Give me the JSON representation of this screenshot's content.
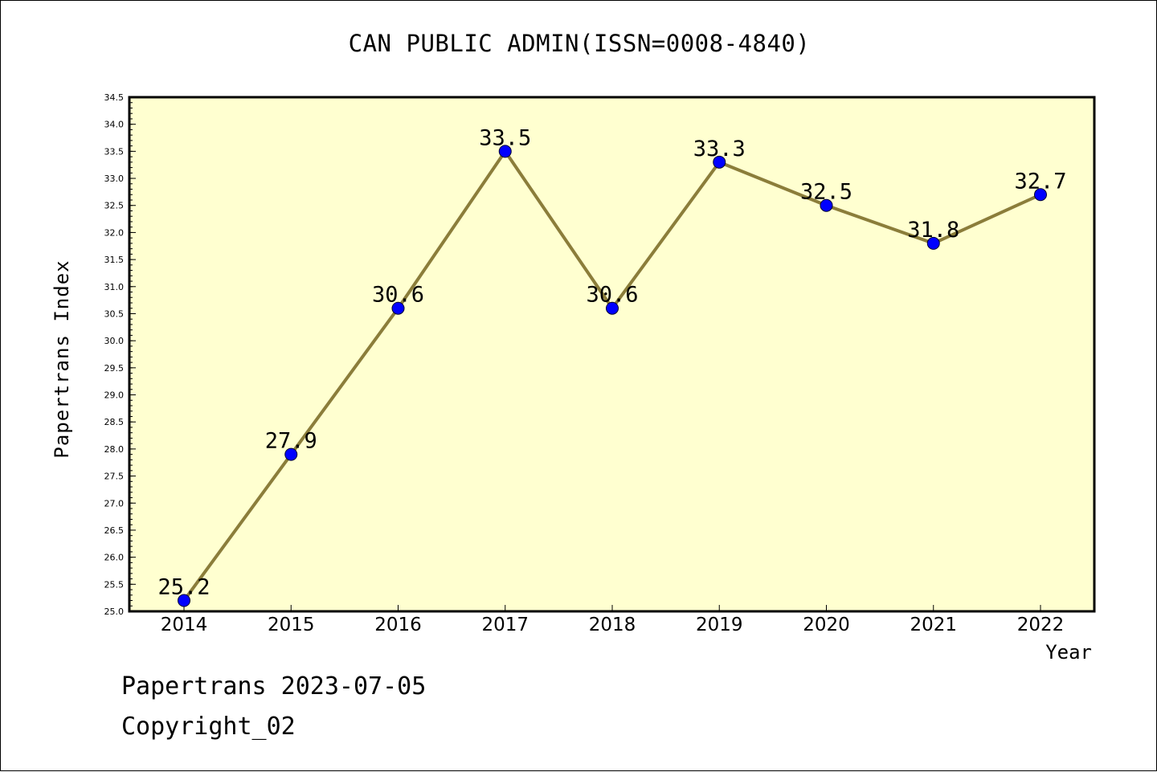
{
  "chart_data": {
    "type": "line",
    "title": "CAN PUBLIC ADMIN(ISSN=0008-4840)",
    "xlabel": "Year",
    "ylabel": "Papertrans Index",
    "x": [
      "2014",
      "2015",
      "2016",
      "2017",
      "2018",
      "2019",
      "2020",
      "2021",
      "2022"
    ],
    "values": [
      25.2,
      27.9,
      30.6,
      33.5,
      30.6,
      33.3,
      32.5,
      31.8,
      32.7
    ],
    "data_labels": [
      "25.2",
      "27.9",
      "30.6",
      "33.5",
      "30.6",
      "33.3",
      "32.5",
      "31.8",
      "32.7"
    ],
    "ylim": [
      25.0,
      34.5
    ],
    "yticks": [
      "25.0",
      "25.5",
      "26.0",
      "26.5",
      "27.0",
      "27.5",
      "28.0",
      "28.5",
      "29.0",
      "29.5",
      "30.0",
      "30.5",
      "31.0",
      "31.5",
      "32.0",
      "32.5",
      "33.0",
      "33.5",
      "34.0",
      "34.5"
    ],
    "colors": {
      "plot_bg": "#ffffd0",
      "line": "#8b7d3a",
      "marker": "#0000ff"
    },
    "grid": false
  },
  "footer": {
    "line1": "Papertrans 2023-07-05",
    "line2": "Copyright_02"
  }
}
